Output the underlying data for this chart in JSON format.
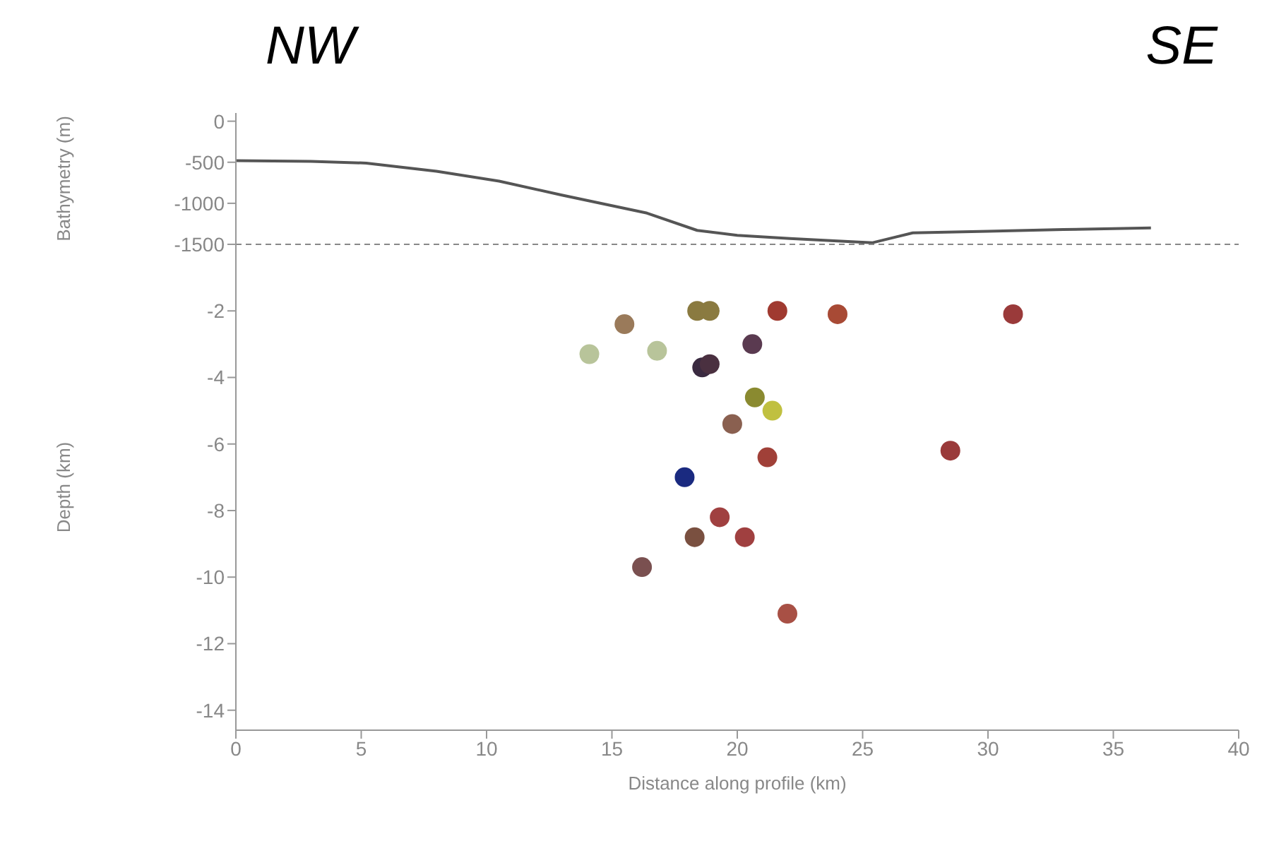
{
  "chart_data": [
    {
      "type": "line",
      "ylabel": "Bathymetry (m)",
      "annotations": [
        "NW",
        "SE"
      ],
      "xlim": [
        0,
        40
      ],
      "xticks": [
        0,
        5,
        10,
        15,
        20,
        25,
        30,
        35,
        40
      ],
      "ylim": [
        -1500,
        100
      ],
      "yticks": [
        0,
        -500,
        -1000,
        -1500
      ],
      "tick_labels": "y",
      "series": [
        {
          "color": "#555555",
          "x": [
            0,
            3,
            5.2,
            8,
            10.5,
            13,
            16.4,
            18.4,
            20,
            22.1,
            24,
            25.4,
            27,
            30,
            33,
            36.5
          ],
          "values": [
            -480,
            -490,
            -510,
            -610,
            -730,
            -900,
            -1120,
            -1330,
            -1390,
            -1430,
            -1460,
            -1480,
            -1360,
            -1340,
            -1320,
            -1300
          ]
        }
      ]
    },
    {
      "type": "scatter",
      "xlabel": "Distance along profile (km)",
      "ylabel": "Depth (km)",
      "xlim": [
        0,
        40
      ],
      "xticks": [
        0,
        5,
        10,
        15,
        20,
        25,
        30,
        35,
        40
      ],
      "ylim": [
        -14.6,
        0
      ],
      "yticks": [
        -2,
        -4,
        -6,
        -8,
        -10,
        -12,
        -14
      ],
      "marker": "circle",
      "x": [
        14.1,
        15.5,
        16.8,
        18.4,
        18.9,
        21.6,
        24.0,
        20.6,
        18.6,
        18.9,
        20.7,
        21.4,
        19.8,
        21.2,
        17.9,
        19.3,
        18.3,
        20.3,
        16.2,
        22.0,
        31.0,
        28.5
      ],
      "values": [
        -3.3,
        -2.4,
        -3.2,
        -2.0,
        -2.0,
        -2.0,
        -2.1,
        -3.0,
        -3.7,
        -3.6,
        -4.6,
        -5.0,
        -5.4,
        -6.4,
        -7.0,
        -8.2,
        -8.8,
        -8.8,
        -9.7,
        -11.1,
        -2.1,
        -6.2
      ],
      "colors": [
        "#b8c49a",
        "#9a7a5a",
        "#b8c49a",
        "#8a7a40",
        "#8a7a40",
        "#a03a30",
        "#a84a35",
        "#5a3a50",
        "#3a2a40",
        "#4a3040",
        "#8a8a30",
        "#c0c040",
        "#8a6050",
        "#a04038",
        "#1a2a80",
        "#a04040",
        "#7a5040",
        "#a04040",
        "#7a5050",
        "#a85045",
        "#9a3a3a",
        "#9a3a3a"
      ]
    }
  ]
}
